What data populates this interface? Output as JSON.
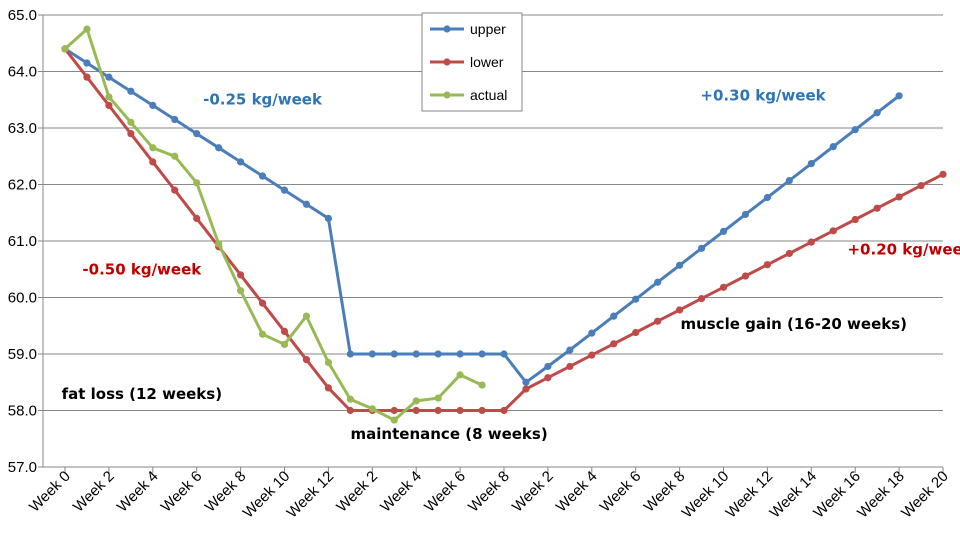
{
  "chart_data": {
    "type": "line",
    "title": "",
    "xlabel": "",
    "ylabel": "",
    "ylim": [
      57.0,
      65.0
    ],
    "ytick_step": 1.0,
    "grid": true,
    "legend_position": "top-center",
    "x_tick_labels": [
      "Week 0",
      "Week 2",
      "Week 4",
      "Week 6",
      "Week 8",
      "Week 10",
      "Week 12",
      "Week 2",
      "Week 4",
      "Week 6",
      "Week 8",
      "Week 2",
      "Week 4",
      "Week 6",
      "Week 8",
      "Week 10",
      "Week 12",
      "Week 14",
      "Week 16",
      "Week 18",
      "Week 20"
    ],
    "y_tick_labels": [
      "57.0",
      "58.0",
      "59.0",
      "60.0",
      "61.0",
      "62.0",
      "63.0",
      "64.0",
      "65.0"
    ],
    "series": [
      {
        "name": "upper",
        "color": "#4a7ebb",
        "values": [
          64.4,
          64.15,
          63.9,
          63.65,
          63.4,
          63.15,
          62.9,
          62.65,
          62.4,
          62.15,
          61.9,
          61.65,
          61.4,
          59.0,
          59.0,
          59.0,
          59.0,
          59.0,
          59.0,
          59.0,
          59.0,
          58.5,
          58.78,
          59.07,
          59.37,
          59.67,
          59.97,
          60.27,
          60.57,
          60.87,
          61.17,
          61.47,
          61.77,
          62.07,
          62.37,
          62.67,
          62.97,
          63.27,
          63.57
        ]
      },
      {
        "name": "lower",
        "color": "#be4b48",
        "values": [
          64.4,
          63.9,
          63.4,
          62.9,
          62.4,
          61.9,
          61.4,
          60.9,
          60.4,
          59.9,
          59.4,
          58.9,
          58.4,
          58.0,
          58.0,
          58.0,
          58.0,
          58.0,
          58.0,
          58.0,
          58.0,
          58.38,
          58.58,
          58.78,
          58.98,
          59.18,
          59.38,
          59.58,
          59.78,
          59.98,
          60.18,
          60.38,
          60.58,
          60.78,
          60.98,
          61.18,
          61.38,
          61.58,
          61.78,
          61.98,
          62.18
        ]
      },
      {
        "name": "actual",
        "color": "#98b954",
        "values": [
          64.4,
          64.75,
          63.55,
          63.1,
          62.65,
          62.5,
          62.03,
          60.95,
          60.12,
          59.35,
          59.17,
          59.67,
          58.85,
          58.2,
          58.03,
          57.83,
          58.17,
          58.22,
          58.63,
          58.45
        ]
      }
    ],
    "annotations": [
      {
        "text": "-0.25 kg/week",
        "color": "#2e75b6",
        "at": [
          9,
          63.42
        ]
      },
      {
        "text": "-0.50 kg/week",
        "color": "#c00000",
        "at": [
          3.5,
          60.41
        ]
      },
      {
        "text": "fat loss (12 weeks)",
        "color": "#000000",
        "at": [
          3.5,
          58.2
        ]
      },
      {
        "text": "maintenance (8 weeks)",
        "color": "#000000",
        "at": [
          17.5,
          57.5
        ]
      },
      {
        "text": "+0.30 kg/week",
        "color": "#2e75b6",
        "at": [
          31.8,
          63.49
        ]
      },
      {
        "text": "+0.20 kg/week",
        "color": "#c00000",
        "at": [
          38.5,
          60.76
        ]
      },
      {
        "text": "muscle gain (16-20 weeks)",
        "color": "#000000",
        "at": [
          33.2,
          59.44
        ]
      }
    ]
  }
}
